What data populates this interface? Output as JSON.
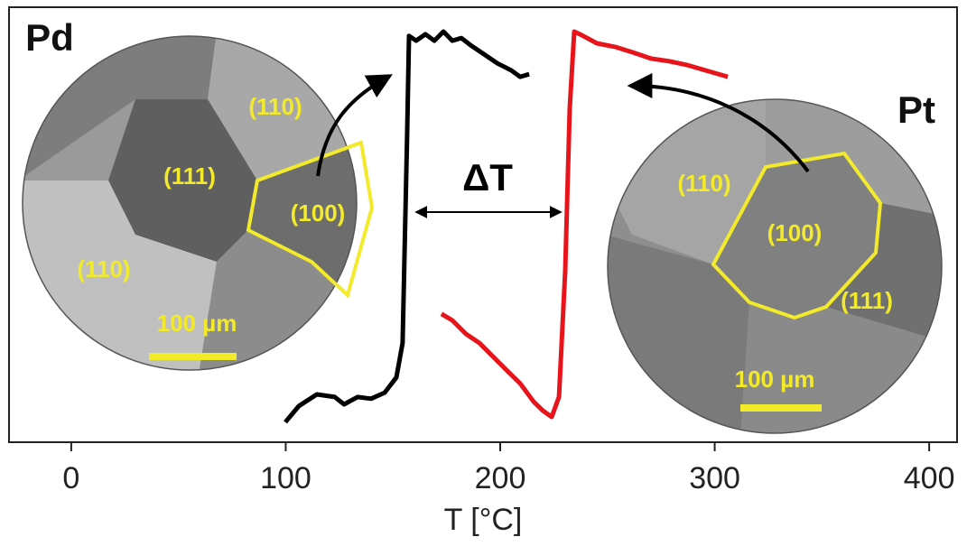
{
  "chart_data": {
    "type": "line",
    "x_label": "T [°C]",
    "xlim": [
      -29,
      413
    ],
    "xticks": [
      0,
      100,
      200,
      300,
      400
    ],
    "ylim": [
      0,
      100
    ],
    "annotation": "ΔT",
    "series": [
      {
        "color": "#000000",
        "x": [
          99.8,
          106.1,
          114.5,
          122.9,
          127.2,
          133.5,
          139.8,
          146.1,
          151.6,
          154.5,
          156.6,
          157.5,
          160.8,
          165.1,
          169.3,
          173.5,
          177.7,
          181.9,
          186.1,
          192.4,
          198.7,
          205.1,
          209.3,
          213.5
        ],
        "values": [
          4.6,
          8.3,
          11.0,
          10.4,
          8.7,
          10.4,
          10.0,
          11.4,
          14.9,
          22.8,
          70.5,
          93.4,
          92.3,
          93.8,
          92.3,
          94.4,
          92.3,
          92.9,
          91.3,
          89.2,
          87.1,
          85.5,
          84.0,
          84.6
        ]
      },
      {
        "color": "#e8141b",
        "x": [
          172.6,
          177.7,
          184.0,
          190.3,
          196.6,
          202.9,
          209.3,
          215.6,
          219.8,
          224.0,
          227.4,
          230.3,
          232.4,
          234.5,
          238.7,
          245.1,
          253.5,
          261.9,
          270.3,
          278.7,
          287.2,
          295.6,
          306.1
        ],
        "values": [
          29.5,
          28.0,
          24.9,
          22.8,
          19.7,
          16.6,
          13.5,
          9.3,
          7.3,
          5.8,
          10.4,
          39.4,
          76.8,
          94.4,
          93.4,
          91.7,
          90.9,
          89.6,
          88.2,
          87.6,
          86.7,
          85.5,
          84.0
        ]
      }
    ],
    "insets": [
      {
        "label": "Pd",
        "regions": [
          "(110)",
          "(111)",
          "(100)",
          "(110)"
        ],
        "scale_bar": "100 µm"
      },
      {
        "label": "Pt",
        "regions": [
          "(110)",
          "(100)",
          "(111)"
        ],
        "scale_bar": "100 µm"
      }
    ]
  }
}
